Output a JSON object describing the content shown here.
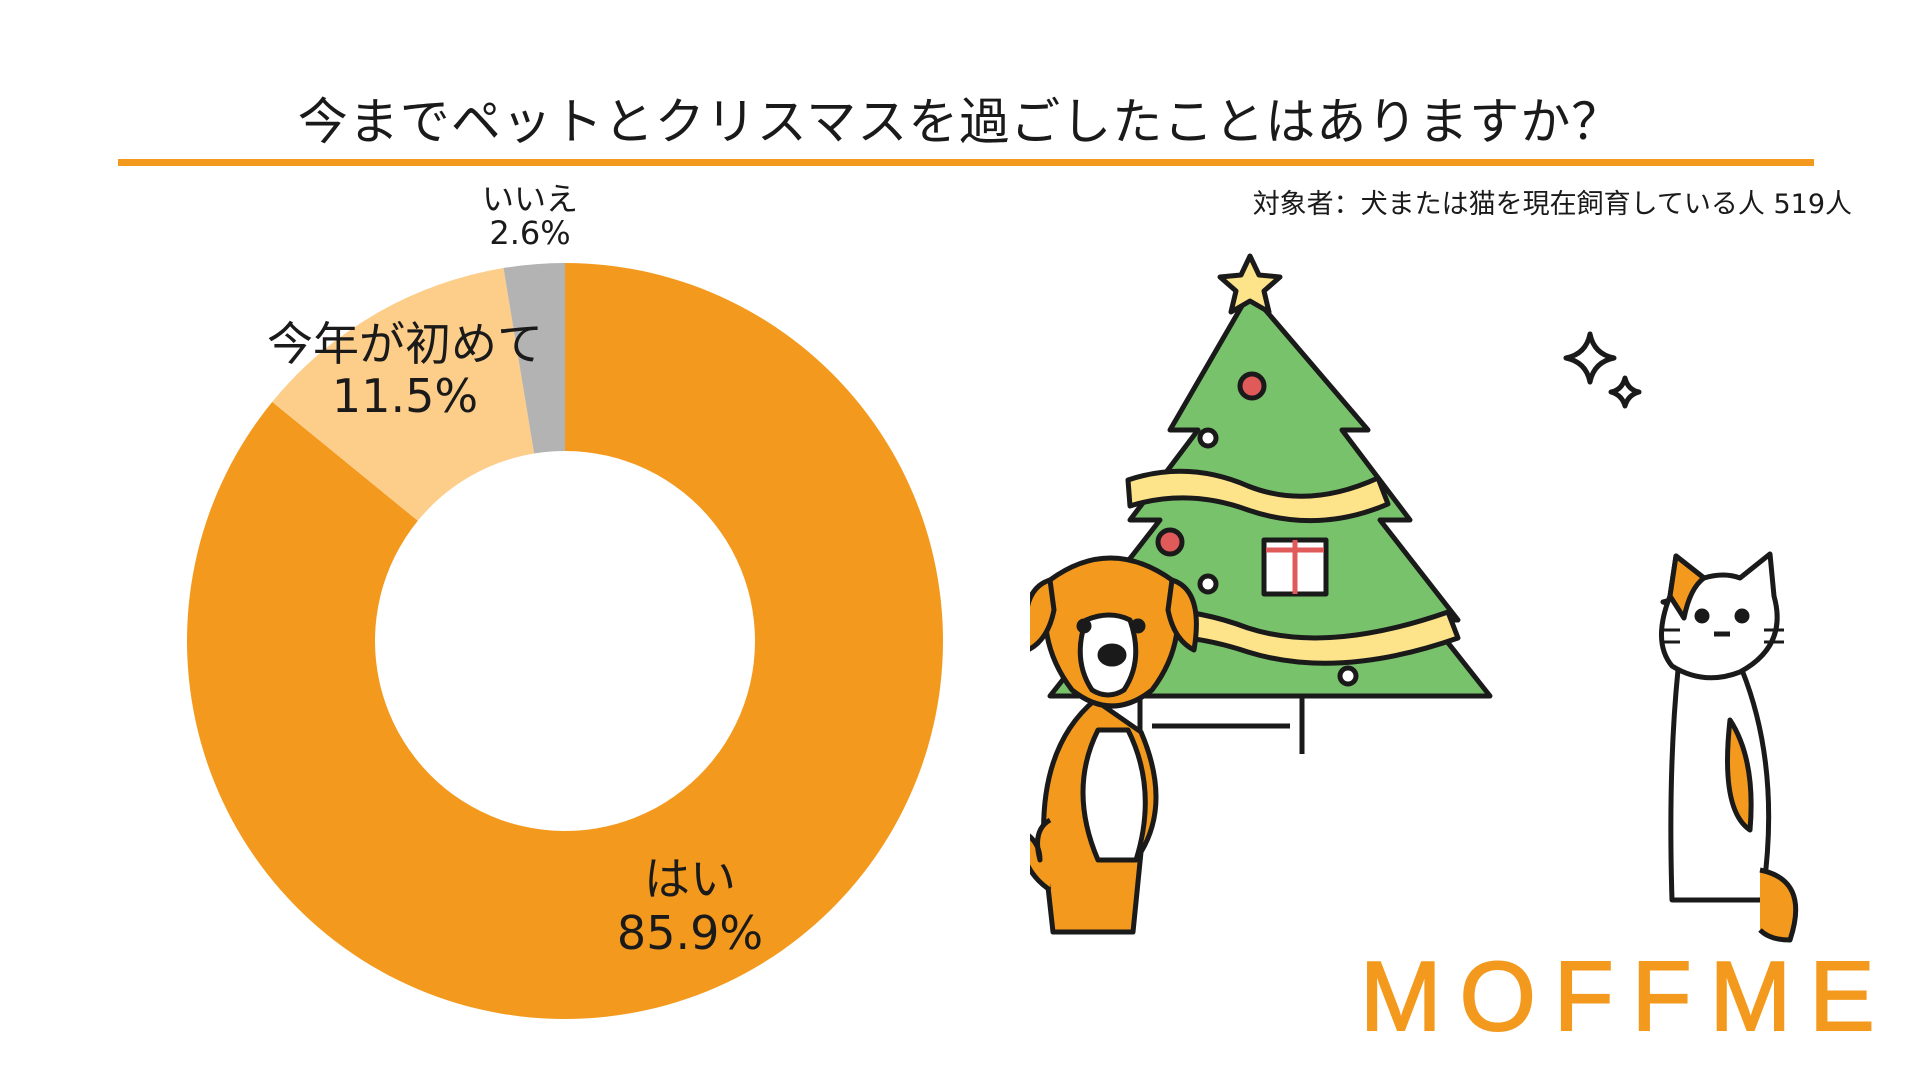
{
  "title": "今までペットとクリスマスを過ごしたことはありますか？",
  "subtitle": "対象者：犬または猫を現在飼育している人 519人",
  "brand": "MOFFME",
  "colors": {
    "accent": "#f39a1e",
    "light": "#fdcd8a",
    "gray": "#b3b3b3"
  },
  "icons": [
    "christmas-tree-icon",
    "dog-icon",
    "cat-icon",
    "sparkle-icon"
  ],
  "chart_data": {
    "type": "pie",
    "variant": "donut",
    "slices": [
      {
        "label": "はい",
        "value": 85.9,
        "value_label": "85.9%",
        "color": "#f39a1e"
      },
      {
        "label": "今年が初めて",
        "value": 11.5,
        "value_label": "11.5%",
        "color": "#fdcd8a"
      },
      {
        "label": "いいえ",
        "value": 2.6,
        "value_label": "2.6%",
        "color": "#b3b3b3"
      }
    ]
  }
}
